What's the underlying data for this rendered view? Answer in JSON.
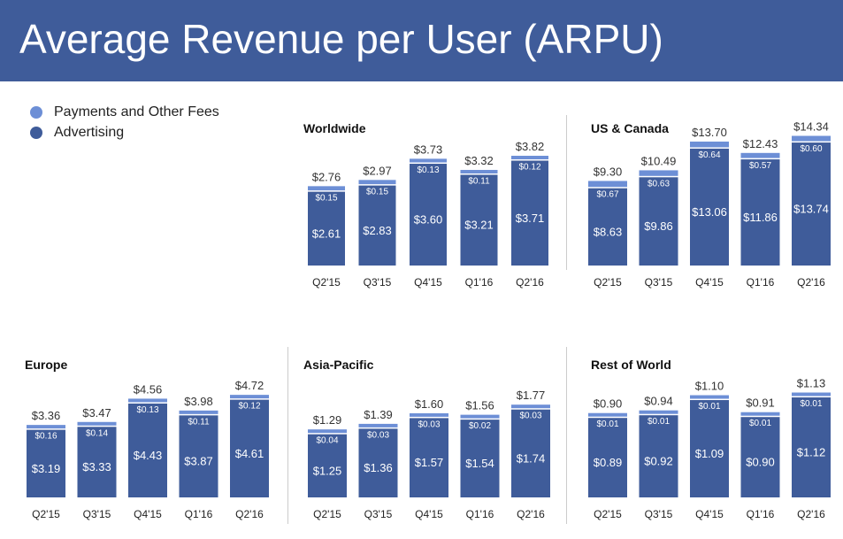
{
  "header": {
    "title": "Average Revenue per User (ARPU)"
  },
  "legend": [
    {
      "label": "Payments and Other Fees",
      "color": "#6d8fd6"
    },
    {
      "label": "Advertising",
      "color": "#3f5c9a"
    }
  ],
  "colors": {
    "advertising": "#3f5c9a",
    "payments": "#6d8fd6",
    "header": "#3f5c9a"
  },
  "chart_data": [
    {
      "type": "bar",
      "stacked": true,
      "title": "Worldwide",
      "categories": [
        "Q2'15",
        "Q3'15",
        "Q4'15",
        "Q1'16",
        "Q2'16"
      ],
      "series": [
        {
          "name": "Advertising",
          "values": [
            2.61,
            2.83,
            3.6,
            3.21,
            3.71
          ],
          "labels": [
            "$2.61",
            "$2.83",
            "$3.60",
            "$3.21",
            "$3.71"
          ]
        },
        {
          "name": "Payments and Other Fees",
          "values": [
            0.15,
            0.15,
            0.13,
            0.11,
            0.12
          ],
          "labels": [
            "$0.15",
            "$0.15",
            "$0.13",
            "$0.11",
            "$0.12"
          ]
        }
      ],
      "totals": [
        2.76,
        2.97,
        3.73,
        3.32,
        3.82
      ],
      "total_labels": [
        "$2.76",
        "$2.97",
        "$3.73",
        "$3.32",
        "$3.82"
      ]
    },
    {
      "type": "bar",
      "stacked": true,
      "title": "US & Canada",
      "categories": [
        "Q2'15",
        "Q3'15",
        "Q4'15",
        "Q1'16",
        "Q2'16"
      ],
      "series": [
        {
          "name": "Advertising",
          "values": [
            8.63,
            9.86,
            13.06,
            11.86,
            13.74
          ],
          "labels": [
            "$8.63",
            "$9.86",
            "$13.06",
            "$11.86",
            "$13.74"
          ]
        },
        {
          "name": "Payments and Other Fees",
          "values": [
            0.67,
            0.63,
            0.64,
            0.57,
            0.6
          ],
          "labels": [
            "$0.67",
            "$0.63",
            "$0.64",
            "$0.57",
            "$0.60"
          ]
        }
      ],
      "totals": [
        9.3,
        10.49,
        13.7,
        12.43,
        14.34
      ],
      "total_labels": [
        "$9.30",
        "$10.49",
        "$13.70",
        "$12.43",
        "$14.34"
      ]
    },
    {
      "type": "bar",
      "stacked": true,
      "title": "Europe",
      "categories": [
        "Q2'15",
        "Q3'15",
        "Q4'15",
        "Q1'16",
        "Q2'16"
      ],
      "series": [
        {
          "name": "Advertising",
          "values": [
            3.19,
            3.33,
            4.43,
            3.87,
            4.61
          ],
          "labels": [
            "$3.19",
            "$3.33",
            "$4.43",
            "$3.87",
            "$4.61"
          ]
        },
        {
          "name": "Payments and Other Fees",
          "values": [
            0.16,
            0.14,
            0.13,
            0.11,
            0.12
          ],
          "labels": [
            "$0.16",
            "$0.14",
            "$0.13",
            "$0.11",
            "$0.12"
          ]
        }
      ],
      "totals": [
        3.36,
        3.47,
        4.56,
        3.98,
        4.72
      ],
      "total_labels": [
        "$3.36",
        "$3.47",
        "$4.56",
        "$3.98",
        "$4.72"
      ]
    },
    {
      "type": "bar",
      "stacked": true,
      "title": "Asia-Pacific",
      "categories": [
        "Q2'15",
        "Q3'15",
        "Q4'15",
        "Q1'16",
        "Q2'16"
      ],
      "series": [
        {
          "name": "Advertising",
          "values": [
            1.25,
            1.36,
            1.57,
            1.54,
            1.74
          ],
          "labels": [
            "$1.25",
            "$1.36",
            "$1.57",
            "$1.54",
            "$1.74"
          ]
        },
        {
          "name": "Payments and Other Fees",
          "values": [
            0.04,
            0.03,
            0.03,
            0.02,
            0.03
          ],
          "labels": [
            "$0.04",
            "$0.03",
            "$0.03",
            "$0.02",
            "$0.03"
          ]
        }
      ],
      "totals": [
        1.29,
        1.39,
        1.6,
        1.56,
        1.77
      ],
      "total_labels": [
        "$1.29",
        "$1.39",
        "$1.60",
        "$1.56",
        "$1.77"
      ]
    },
    {
      "type": "bar",
      "stacked": true,
      "title": "Rest of World",
      "categories": [
        "Q2'15",
        "Q3'15",
        "Q4'15",
        "Q1'16",
        "Q2'16"
      ],
      "series": [
        {
          "name": "Advertising",
          "values": [
            0.89,
            0.92,
            1.09,
            0.9,
            1.12
          ],
          "labels": [
            "$0.89",
            "$0.92",
            "$1.09",
            "$0.90",
            "$1.12"
          ]
        },
        {
          "name": "Payments and Other Fees",
          "values": [
            0.01,
            0.01,
            0.01,
            0.01,
            0.01
          ],
          "labels": [
            "$0.01",
            "$0.01",
            "$0.01",
            "$0.01",
            "$0.01"
          ]
        }
      ],
      "totals": [
        0.9,
        0.94,
        1.1,
        0.91,
        1.13
      ],
      "total_labels": [
        "$0.90",
        "$0.94",
        "$1.10",
        "$0.91",
        "$1.13"
      ]
    }
  ]
}
